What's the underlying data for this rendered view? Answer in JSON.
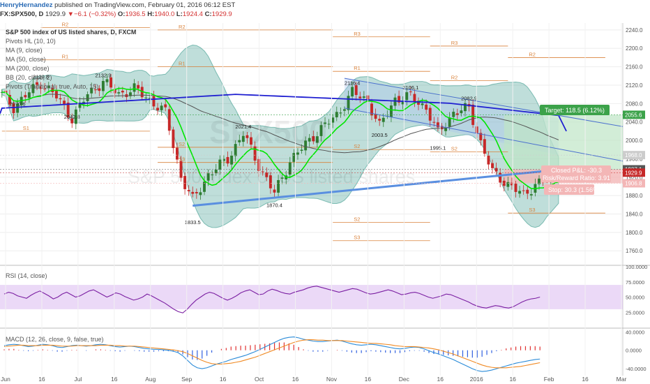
{
  "header": {
    "user": "HenryHernandez",
    "published": " published on TradingView.com, February 01, 2016 06:12 EST",
    "symbol": "FX:SPX500, D",
    "last": "1929.9",
    "change": "−6.1 (−0.32%)",
    "o_label": "O:",
    "o": "1936.5",
    "h_label": "H:",
    "h": "1940.0",
    "l_label": "L:",
    "l": "1924.4",
    "c_label": "C:",
    "c": "1929.9"
  },
  "legend": [
    "S&P 500 index of US listed shares, D, FXCM",
    "Pivots HL (10, 10)",
    "MA (9, close)",
    "MA (50, close)",
    "MA (200, close)",
    "BB (20, close, 2)",
    "Pivots (Traditional, true, Auto, 15)"
  ],
  "watermark": {
    "symbol": "SPX500",
    "desc": "S&P 500 index of US listed shares"
  },
  "position": {
    "target": "Target: 118.5 (6.12%)",
    "closed_pl": "Closed P&L: -30.3",
    "risk_reward": "Risk/Reward Ratio: 3.91",
    "stop": "Stop: 30.3 (1.56%)",
    "entry": 1937.1,
    "target_price": 2055.6,
    "stop_price": 1906.8
  },
  "colors": {
    "up": "#2e7d32",
    "down": "#c62828",
    "ma9": "#00e600",
    "ma50": "#555555",
    "ma200": "#1f1fd1",
    "bb_fill": "#1a8a7a",
    "trend": "#5a8fe0",
    "pivot": "#d9823b",
    "target_fill": "#bfe6c6",
    "stop_fill": "#f3b6b6",
    "rsi": "#7b1fa2",
    "macd": "#2a8bd8",
    "signal": "#f08a24"
  },
  "chart_data": [
    {
      "type": "line",
      "name": "main-price-chart",
      "title": "S&P 500 index of US listed shares, D, FXCM",
      "x_axis_labels": [
        "Jun",
        "16",
        "Jul",
        "16",
        "Aug",
        "Sep",
        "16",
        "Oct",
        "16",
        "Nov",
        "16",
        "Dec",
        "16",
        "2016",
        "16",
        "Feb",
        "16",
        "Mar"
      ],
      "y_ticks": [
        1760.0,
        1800.0,
        1840.0,
        1880.0,
        1920.0,
        1960.0,
        2000.0,
        2040.0,
        2080.0,
        2120.0,
        2160.0,
        2200.0,
        2240.0
      ],
      "ylim": [
        1730,
        2255
      ],
      "price_markers": [
        {
          "label": "2055.6",
          "value": 2055.6,
          "color": "#3ca24a"
        },
        {
          "label": "1968.0",
          "value": 1968.0,
          "color": "#cccccc"
        },
        {
          "label": "1937.1",
          "value": 1937.1,
          "color": "#555555"
        },
        {
          "label": "1929.9",
          "value": 1929.9,
          "color": "#c62828"
        },
        {
          "label": "1906.8",
          "value": 1906.8,
          "color": "#f3b6b6"
        }
      ],
      "pivot_labels": [
        {
          "text": "2070.6",
          "bar": 4,
          "value": 2070.6
        },
        {
          "text": "2129.8",
          "bar": 10,
          "value": 2129.8
        },
        {
          "text": "2042.8",
          "bar": 18,
          "value": 2042.8
        },
        {
          "text": "2132.9",
          "bar": 26,
          "value": 2132.9
        },
        {
          "text": "1833.5",
          "bar": 49,
          "value": 1833.5
        },
        {
          "text": "2021.4",
          "bar": 62,
          "value": 2021.4
        },
        {
          "text": "1870.4",
          "bar": 70,
          "value": 1870.4
        },
        {
          "text": "2116.4",
          "bar": 90,
          "value": 2116.4
        },
        {
          "text": "2003.5",
          "bar": 97,
          "value": 2003.5
        },
        {
          "text": "2106.1",
          "bar": 105,
          "value": 2106.1
        },
        {
          "text": "1995.1",
          "bar": 112,
          "value": 1995.1
        },
        {
          "text": "2082.9",
          "bar": 120,
          "value": 2082.9
        }
      ],
      "series": [
        {
          "name": "MA (9, close)"
        },
        {
          "name": "MA (50, close)"
        },
        {
          "name": "MA (200, close)"
        },
        {
          "name": "BB (20, close, 2)"
        }
      ]
    },
    {
      "type": "line",
      "name": "rsi-panel",
      "title": "RSI (14, close)",
      "y_ticks": [
        "100.0000",
        "75.0000",
        "50.0000",
        "25.0000"
      ],
      "ylim": [
        0,
        100
      ],
      "bands": [
        30,
        70
      ],
      "values": [
        55,
        58,
        56,
        52,
        50,
        48,
        53,
        57,
        60,
        56,
        52,
        47,
        50,
        55,
        58,
        54,
        50,
        52,
        56,
        60,
        62,
        58,
        54,
        50,
        53,
        57,
        55,
        51,
        48,
        45,
        47,
        50,
        55,
        52,
        48,
        44,
        40,
        35,
        30,
        26,
        24,
        30,
        38,
        45,
        50,
        55,
        58,
        56,
        52,
        48,
        45,
        48,
        52,
        57,
        60,
        62,
        58,
        54,
        55,
        60,
        63,
        61,
        58,
        56,
        55,
        58,
        60,
        62,
        65,
        67,
        68,
        66,
        64,
        62,
        60,
        58,
        60,
        62,
        64,
        63,
        60,
        57,
        55,
        56,
        58,
        60,
        62,
        60,
        57,
        54,
        55,
        57,
        58,
        56,
        53,
        50,
        48,
        50,
        52,
        55,
        54,
        51,
        48,
        45,
        42,
        38,
        35,
        33,
        32,
        34,
        36,
        35,
        33,
        32,
        34,
        38,
        42,
        45,
        47,
        48,
        50
      ]
    },
    {
      "type": "bar",
      "name": "macd-panel",
      "title": "MACD (12, 26, close, 9, false, true)",
      "y_ticks": [
        "40.0000",
        "0.0000",
        "-40.0000"
      ],
      "ylim": [
        -55,
        45
      ],
      "macd": [
        10,
        12,
        13,
        12,
        10,
        8,
        9,
        11,
        13,
        12,
        10,
        7,
        6,
        8,
        10,
        11,
        10,
        9,
        10,
        12,
        13,
        12,
        10,
        8,
        7,
        8,
        9,
        8,
        6,
        4,
        3,
        2,
        2,
        1,
        0,
        -2,
        -5,
        -12,
        -22,
        -32,
        -38,
        -40,
        -38,
        -34,
        -30,
        -27,
        -24,
        -20,
        -17,
        -14,
        -11,
        -7,
        -3,
        2,
        7,
        12,
        17,
        22,
        26,
        28,
        29,
        27,
        24,
        22,
        20,
        19,
        19,
        20,
        21,
        22,
        20,
        17,
        14,
        12,
        11,
        12,
        13,
        12,
        10,
        8,
        6,
        4,
        3,
        4,
        6,
        7,
        6,
        3,
        -1,
        -5,
        -8,
        -12,
        -16,
        -20,
        -25,
        -30,
        -35,
        -40,
        -44,
        -46,
        -45,
        -43,
        -40,
        -37,
        -34,
        -31,
        -28,
        -26,
        -24,
        -22,
        -20,
        -19
      ],
      "signal": [
        8,
        9,
        10,
        11,
        11,
        10,
        10,
        10,
        11,
        11,
        11,
        10,
        9,
        9,
        9,
        10,
        10,
        10,
        10,
        10,
        11,
        11,
        11,
        10,
        10,
        9,
        9,
        9,
        8,
        7,
        6,
        5,
        4,
        3,
        2,
        1,
        -1,
        -3,
        -7,
        -12,
        -17,
        -22,
        -26,
        -29,
        -30,
        -30,
        -29,
        -28,
        -26,
        -24,
        -21,
        -18,
        -15,
        -11,
        -7,
        -3,
        1,
        5,
        9,
        13,
        17,
        20,
        22,
        23,
        23,
        22,
        22,
        21,
        21,
        21,
        21,
        20,
        19,
        18,
        17,
        16,
        15,
        15,
        14,
        13,
        12,
        10,
        9,
        8,
        8,
        8,
        7,
        6,
        5,
        3,
        1,
        -2,
        -5,
        -8,
        -12,
        -16,
        -20,
        -24,
        -28,
        -32,
        -35,
        -37,
        -38,
        -38,
        -38,
        -37,
        -36,
        -35,
        -33,
        -31,
        -29,
        -27
      ]
    }
  ]
}
